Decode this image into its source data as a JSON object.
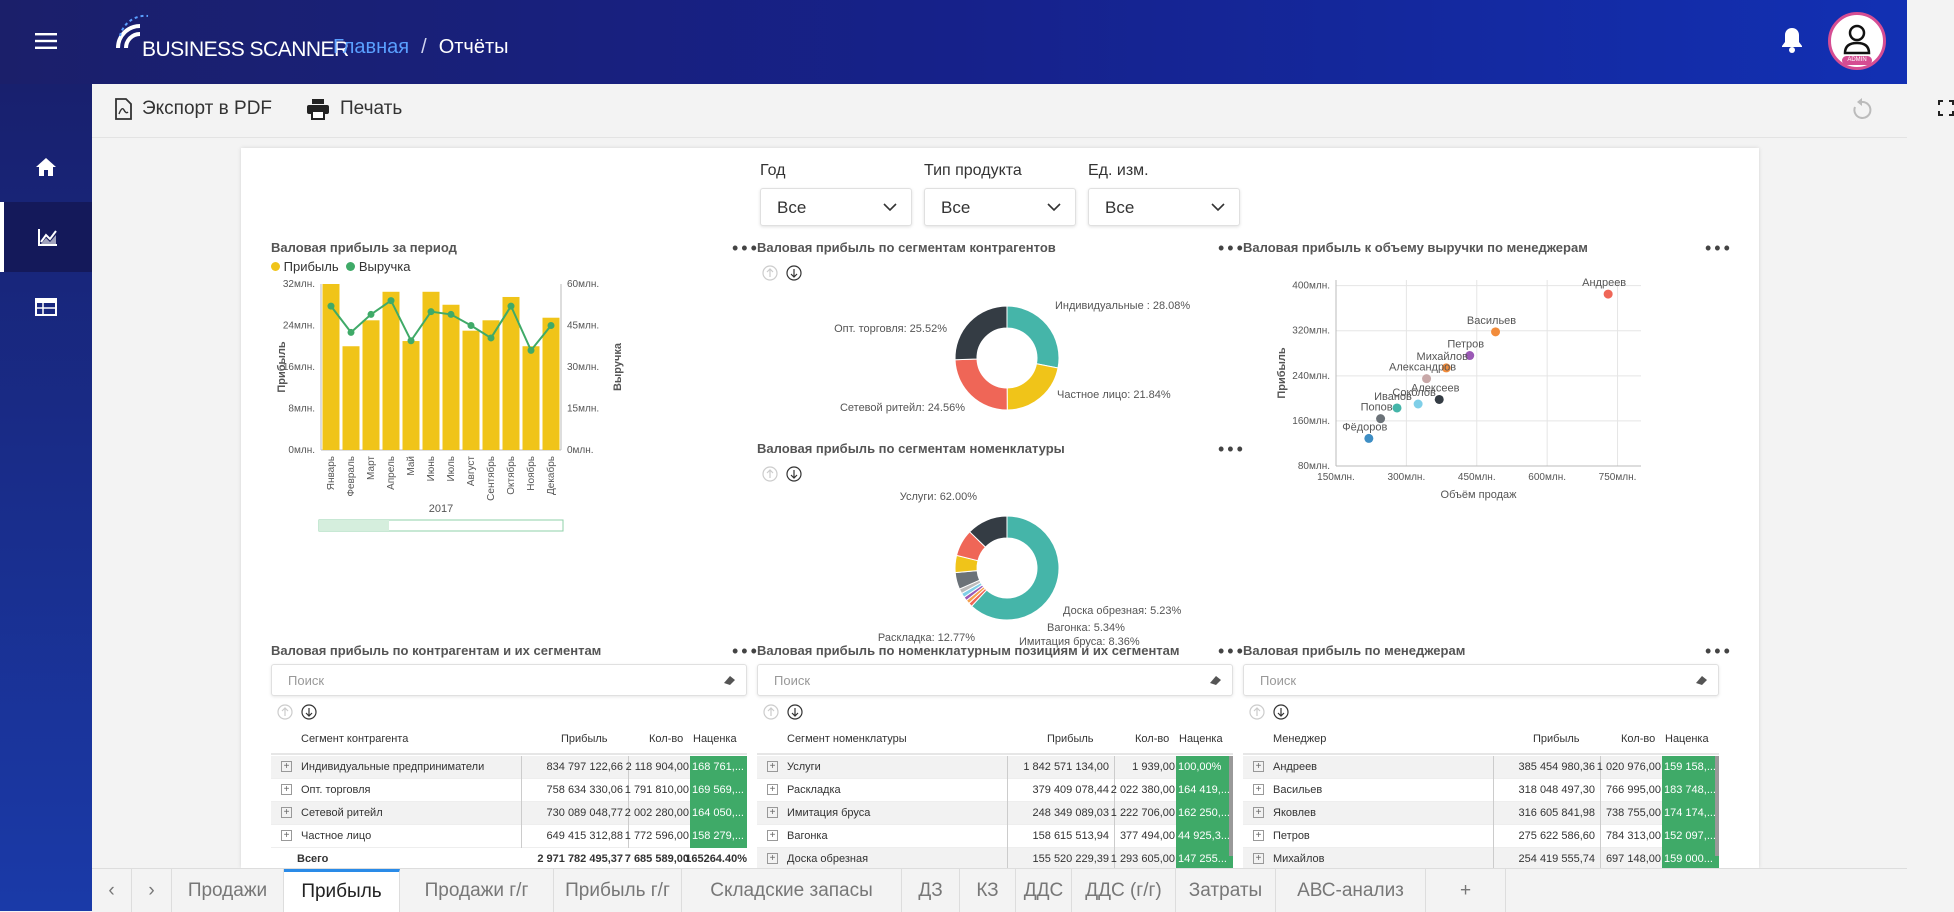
{
  "app": {
    "logo_text": "BUSINESS SCANNER",
    "avatar_badge": "ADMIN"
  },
  "breadcrumb": {
    "home": "Главная",
    "separator": "/",
    "current": "Отчёты"
  },
  "toolbar": {
    "export_pdf": "Экспорт в PDF",
    "print": "Печать"
  },
  "filters": [
    {
      "label": "Год",
      "value": "Все"
    },
    {
      "label": "Тип продукта",
      "value": "Все"
    },
    {
      "label": "Ед. изм.",
      "value": "Все"
    }
  ],
  "chart_data": [
    {
      "type": "bar",
      "title": "Валовая прибыль за период",
      "legend": [
        "Прибыль",
        "Выручка"
      ],
      "xlabel": "2017",
      "ylabel": "Прибыль",
      "y2label": "Выручка",
      "categories": [
        "Январь",
        "Февраль",
        "Март",
        "Апрель",
        "Май",
        "Июнь",
        "Июль",
        "Август",
        "Сентябрь",
        "Октябрь",
        "Ноябрь",
        "Декабрь"
      ],
      "yticks": [
        "0млн.",
        "8млн.",
        "16млн.",
        "24млн.",
        "32млн."
      ],
      "y2ticks": [
        "0млн.",
        "15млн.",
        "30млн.",
        "45млн.",
        "60млн."
      ],
      "ylim": [
        0,
        32
      ],
      "y2lim": [
        0,
        60
      ],
      "series": [
        {
          "name": "Прибыль",
          "type": "bar",
          "values": [
            32,
            20,
            25,
            30.5,
            21,
            30.5,
            28,
            23,
            25,
            29.5,
            20,
            25.5
          ]
        },
        {
          "name": "Выручка",
          "type": "line",
          "values": [
            52,
            42.5,
            49,
            54,
            39.5,
            50,
            49,
            45,
            40.5,
            52,
            36,
            45
          ]
        }
      ]
    },
    {
      "type": "pie",
      "title": "Валовая прибыль по сегментам контрагентов",
      "slices": [
        {
          "label": "Индивидуальные : 28.08%",
          "value": 28.08,
          "color": "#45b5a9"
        },
        {
          "label": "Частное лицо: 21.84%",
          "value": 21.84,
          "color": "#f0c419"
        },
        {
          "label": "Сетевой ритейл: 24.56%",
          "value": 24.56,
          "color": "#ef6657"
        },
        {
          "label": "Опт. торговля: 25.52%",
          "value": 25.52,
          "color": "#343c44"
        }
      ]
    },
    {
      "type": "pie",
      "title": "Валовая прибыль по сегментам номенклатуры",
      "slices": [
        {
          "label": "Услуги: 62.00%",
          "value": 62.0,
          "color": "#45b5a9"
        },
        {
          "label": "",
          "value": 1.2,
          "color": "#ef6657"
        },
        {
          "label": "",
          "value": 1.2,
          "color": "#f6a04d"
        },
        {
          "label": "",
          "value": 1.2,
          "color": "#9b59b6"
        },
        {
          "label": "",
          "value": 1.4,
          "color": "#7fcfe8"
        },
        {
          "label": "",
          "value": 1.5,
          "color": "#bbbbbb"
        },
        {
          "label": "Доска обрезная: 5.23%",
          "value": 5.23,
          "color": "#6b7278"
        },
        {
          "label": "Вагонка: 5.34%",
          "value": 5.34,
          "color": "#f0c419"
        },
        {
          "label": "Имитация бруса: 8.36%",
          "value": 8.36,
          "color": "#ef6657"
        },
        {
          "label": "Раскладка: 12.77%",
          "value": 12.77,
          "color": "#343c44"
        }
      ]
    },
    {
      "type": "scatter",
      "title": "Валовая прибыль к объему выручки по менеджерам",
      "xlabel": "Объём продаж",
      "ylabel": "Прибыль",
      "xticks": [
        "150млн.",
        "300млн.",
        "450млн.",
        "600млн.",
        "750млн."
      ],
      "yticks": [
        "80млн.",
        "160млн.",
        "240млн.",
        "320млн.",
        "400млн."
      ],
      "xlim": [
        150,
        800
      ],
      "ylim": [
        80,
        410
      ],
      "points": [
        {
          "name": "Андреев",
          "x": 730,
          "y": 385,
          "color": "#ef6657"
        },
        {
          "name": "Васильев",
          "x": 490,
          "y": 318,
          "color": "#f28c3b"
        },
        {
          "name": "Петров",
          "x": 435,
          "y": 276,
          "color": "#9b59b6"
        },
        {
          "name": "Михайлов",
          "x": 385,
          "y": 254,
          "color": "#f28c3b"
        },
        {
          "name": "Александров",
          "x": 343,
          "y": 235,
          "color": "#c8a8a8"
        },
        {
          "name": "Алексеев",
          "x": 370,
          "y": 198,
          "color": "#343c44"
        },
        {
          "name": "Соколов",
          "x": 325,
          "y": 190,
          "color": "#7fcfe8"
        },
        {
          "name": "Иванов",
          "x": 280,
          "y": 183,
          "color": "#45b5a9"
        },
        {
          "name": "Попов",
          "x": 245,
          "y": 164,
          "color": "#6b7278"
        },
        {
          "name": "Фёдоров",
          "x": 220,
          "y": 129,
          "color": "#3e8ec4"
        }
      ]
    }
  ],
  "tables": {
    "search_placeholder": "Поиск",
    "t1": {
      "title": "Валовая прибыль по контрагентам и их сегментам",
      "headers": [
        "Сегмент контрагента",
        "Прибыль",
        "Кол-во",
        "Наценка"
      ],
      "rows": [
        [
          "Индивидуальные предприниматели",
          "834 797 122,66",
          "2 118 904,00",
          "168 761,..."
        ],
        [
          "Опт. торговля",
          "758 634 330,06",
          "1 791 810,00",
          "169 569,..."
        ],
        [
          "Сетевой ритейл",
          "730 089 048,77",
          "2 002 280,00",
          "164 050,..."
        ],
        [
          "Частное лицо",
          "649 415 312,88",
          "1 772 596,00",
          "158 279,..."
        ]
      ],
      "total": [
        "Всего",
        "2 971 782 495,37",
        "7 685 589,00",
        "165264.40%"
      ]
    },
    "t2": {
      "title": "Валовая прибыль по номенклатурным позициям и их сегментам",
      "headers": [
        "Сегмент номенклатуры",
        "Прибыль",
        "Кол-во",
        "Наценка"
      ],
      "rows": [
        [
          "Услуги",
          "1 842 571 134,00",
          "1 939,00",
          "100,00%"
        ],
        [
          "Раскладка",
          "379 409 078,44",
          "2 022 380,00",
          "164 419,..."
        ],
        [
          "Имитация бруса",
          "248 349 089,03",
          "1 222 706,00",
          "162 250,..."
        ],
        [
          "Вагонка",
          "158 615 513,94",
          "377 494,00",
          "44 925,3..."
        ],
        [
          "Доска обрезная",
          "155 520 229,39",
          "1 293 605,00",
          "147 255..."
        ]
      ]
    },
    "t3": {
      "title": "Валовая прибыль по менеджерам",
      "headers": [
        "Менеджер",
        "Прибыль",
        "Кол-во",
        "Наценка"
      ],
      "rows": [
        [
          "Андреев",
          "385 454 980,36",
          "1 020 976,00",
          "159 158,..."
        ],
        [
          "Васильев",
          "318 048 497,30",
          "766 995,00",
          "183 748,..."
        ],
        [
          "Яковлев",
          "316 605 841,98",
          "738 755,00",
          "174 174,..."
        ],
        [
          "Петров",
          "275 622 586,60",
          "784 313,00",
          "152 097,..."
        ],
        [
          "Михайлов",
          "254 419 555,74",
          "697 148,00",
          "159 000..."
        ]
      ]
    }
  },
  "tabs": {
    "prev": "‹",
    "next": "›",
    "items": [
      "Продажи",
      "Прибыль",
      "Продажи г/г",
      "Прибыль г/г",
      "Складские запасы",
      "ДЗ",
      "КЗ",
      "ДДС",
      "ДДС (г/г)",
      "Затраты",
      "АВС-анализ",
      "+"
    ],
    "active": 1
  }
}
